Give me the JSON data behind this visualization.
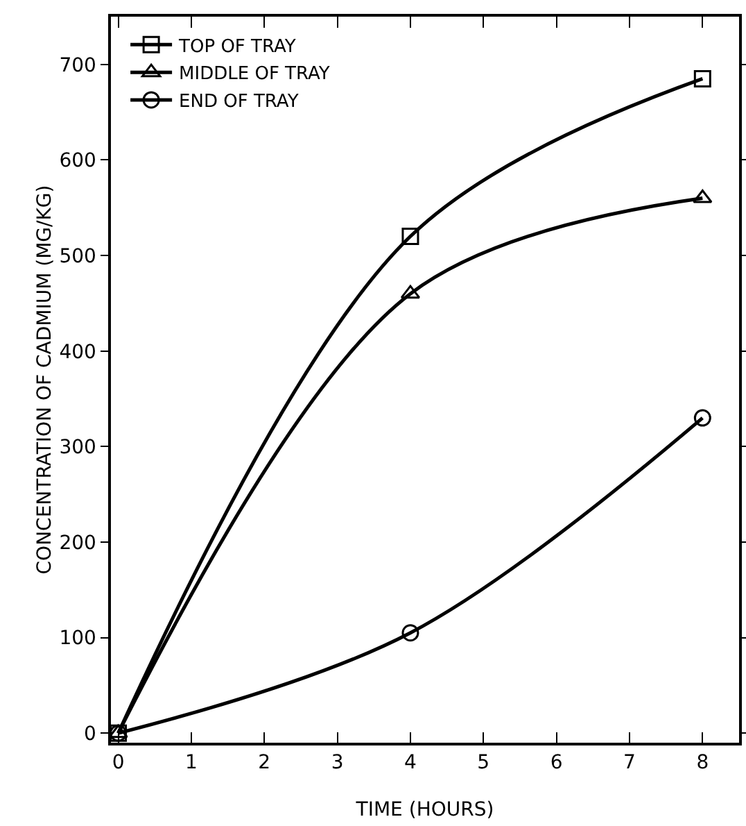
{
  "chart_data": {
    "type": "line",
    "xlabel": "TIME (HOURS)",
    "ylabel": "CONCENTRATION OF CADMIUM (MG/KG)",
    "x": [
      0,
      4,
      8
    ],
    "series": [
      {
        "name": "TOP OF TRAY",
        "color": "#000000",
        "marker": "square",
        "values": [
          0,
          520,
          685
        ]
      },
      {
        "name": "MIDDLE OF TRAY",
        "color": "#000000",
        "marker": "triangle",
        "values": [
          0,
          460,
          560
        ]
      },
      {
        "name": "END OF TRAY",
        "color": "#000000",
        "marker": "circle",
        "values": [
          0,
          105,
          330
        ]
      }
    ],
    "xlim": [
      -0.1,
      8.5
    ],
    "xticks": [
      0,
      1,
      2,
      3,
      4,
      5,
      6,
      7,
      8
    ],
    "ylim": [
      -10,
      750
    ],
    "yticks": [
      0,
      100,
      200,
      300,
      400,
      500,
      600,
      700
    ],
    "grid": false,
    "legend": "top left",
    "line_style": "solid"
  }
}
